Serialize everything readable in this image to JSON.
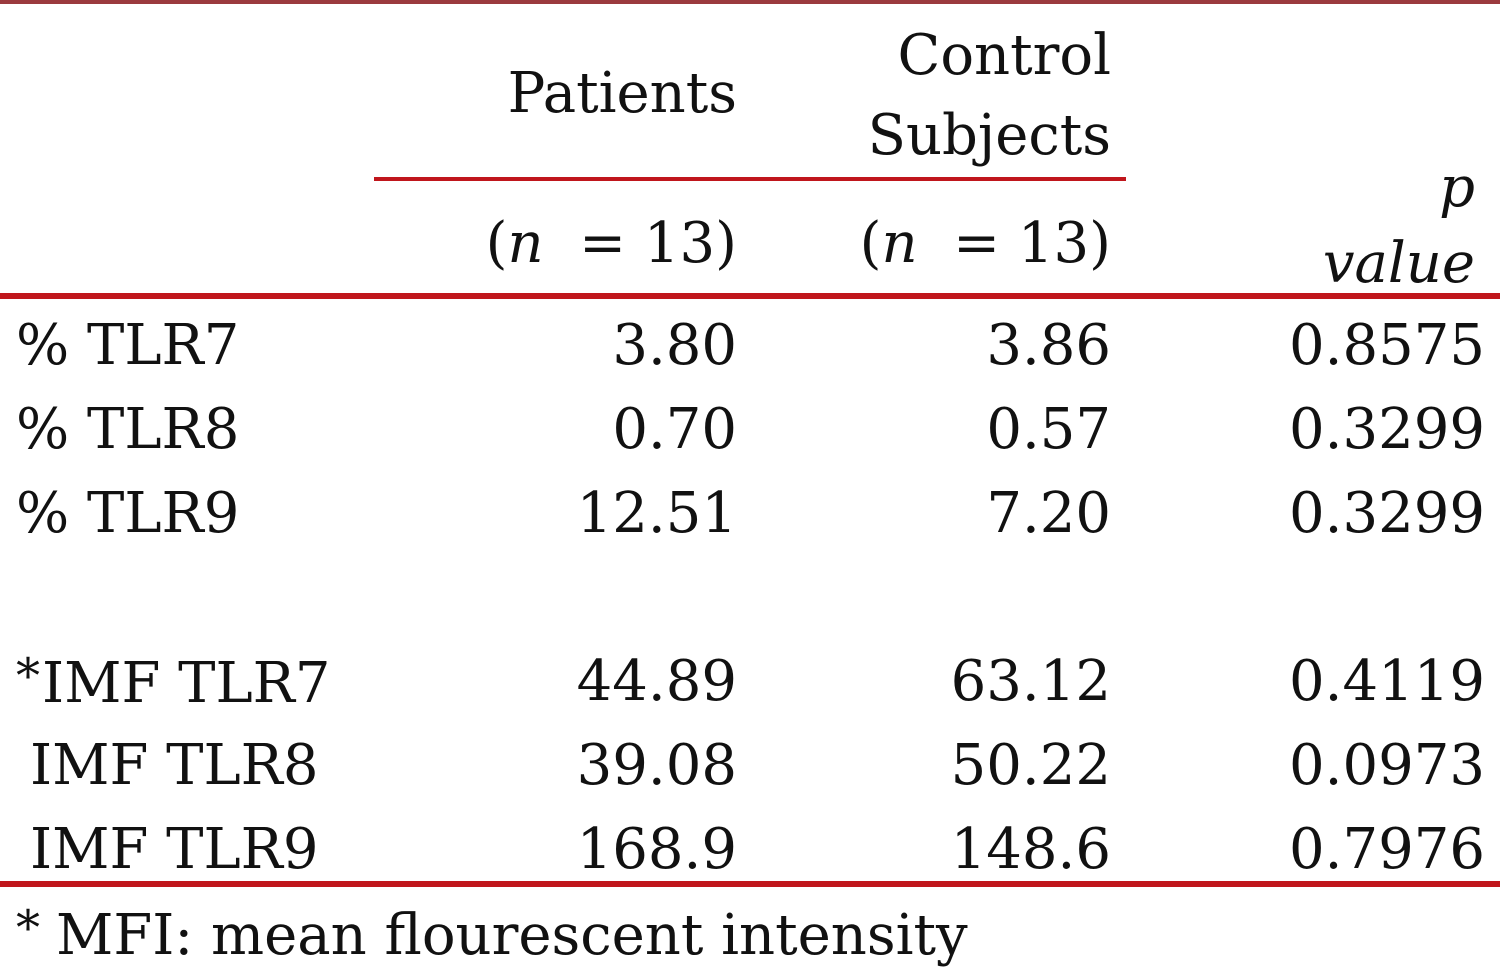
{
  "header": {
    "patients_label": "Patients",
    "controls_line1": "Control",
    "controls_line2": "Subjects",
    "patients_n": {
      "open": "(",
      "var": "n",
      "eq": "= 13)"
    },
    "controls_n": {
      "open": "(",
      "var": "n",
      "eq": "= 13)"
    },
    "p_line1": "p",
    "p_line2": "value"
  },
  "rows": [
    {
      "marker": "",
      "label": "% TLR7",
      "patients": "3.80",
      "controls": "3.86",
      "p": "0.8575"
    },
    {
      "marker": "",
      "label": "% TLR8",
      "patients": "0.70",
      "controls": "0.57",
      "p": "0.3299"
    },
    {
      "marker": "",
      "label": "% TLR9",
      "patients": "12.51",
      "controls": "7.20",
      "p": "0.3299"
    },
    {
      "marker": "*",
      "label": "IMF TLR7",
      "patients": "44.89",
      "controls": "63.12",
      "p": "0.4119"
    },
    {
      "marker": "",
      "label": "IMF TLR8",
      "patients": "39.08",
      "controls": "50.22",
      "p": "0.0973"
    },
    {
      "marker": "",
      "label": "IMF TLR9",
      "patients": "168.9",
      "controls": "148.6",
      "p": "0.7976"
    }
  ],
  "footnote": {
    "marker": "*",
    "text": "MFI: mean flourescent intensity"
  },
  "colors": {
    "rule": "#c0161c",
    "top_rule": "#9b3a3e",
    "text": "#111111"
  }
}
